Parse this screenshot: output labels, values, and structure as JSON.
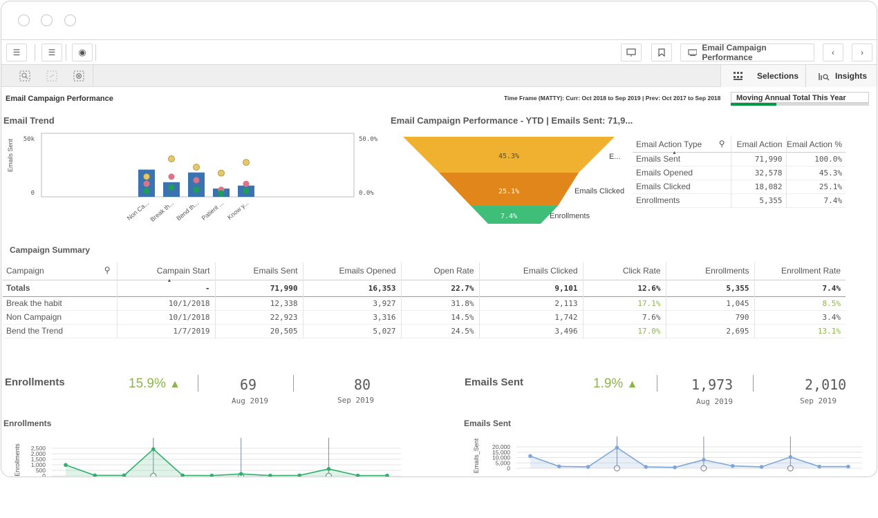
{
  "toolbar": {
    "sheet_title": "Email Campaign Performance"
  },
  "selbar": {
    "selections_label": "Selections",
    "insights_label": "Insights"
  },
  "page": {
    "title": "Email Campaign Performance",
    "timeframe": "Time Frame (MATTY): Curr: Oct 2018 to Sep 2019 | Prev: Oct 2017 to Sep 2018",
    "mat_button": "Moving Annual Total This Year",
    "mat_progress": 0.33
  },
  "trend": {
    "title": "Email Trend",
    "ylabel": "Emails Sent",
    "y_max_label": "50k",
    "y_min_label": "0",
    "y2_max_label": "50.0%",
    "y2_min_label": "0.0%",
    "categories": [
      "Non Ca...",
      "Break th...",
      "Bend th...",
      "Patient ...",
      "Know y..."
    ]
  },
  "funnel": {
    "title": "Email Campaign Performance - YTD | Emails Sent: 71,9...",
    "stages": [
      {
        "pct": "45.3%",
        "label": "E...",
        "color": "#f0b030"
      },
      {
        "pct": "25.1%",
        "label": "Emails Clicked",
        "color": "#e0861a"
      },
      {
        "pct": "7.4%",
        "label": "Enrollments",
        "color": "#3fbe7a"
      }
    ]
  },
  "action_table": {
    "headers": [
      "Email Action Type",
      "Email Action",
      "Email Action %"
    ],
    "rows": [
      [
        "Emails Sent",
        "71,990",
        "100.0%"
      ],
      [
        "Emails Opened",
        "32,578",
        "45.3%"
      ],
      [
        "Emails Clicked",
        "18,082",
        "25.1%"
      ],
      [
        "Enrollments",
        "5,355",
        "7.4%"
      ]
    ]
  },
  "summary": {
    "title": "Campaign Summary",
    "headers": [
      "Campaign",
      "Campain Start",
      "Emails Sent",
      "Emails Opened",
      "Open Rate",
      "Emails Clicked",
      "Click Rate",
      "Enrollments",
      "Enrollment Rate"
    ],
    "totals": [
      "Totals",
      "-",
      "71,990",
      "16,353",
      "22.7%",
      "9,101",
      "12.6%",
      "5,355",
      "7.4%"
    ],
    "rows": [
      [
        "Break the habit",
        "10/1/2018",
        "12,338",
        "3,927",
        "31.8%",
        "2,113",
        "17.1%",
        "1,045",
        "8.5%"
      ],
      [
        "Non Campaign",
        "10/1/2018",
        "22,923",
        "3,316",
        "14.5%",
        "1,742",
        "7.6%",
        "790",
        "3.4%"
      ],
      [
        "Bend the Trend",
        "1/7/2019",
        "20,505",
        "5,027",
        "24.5%",
        "3,496",
        "17.0%",
        "2,695",
        "13.1%"
      ]
    ],
    "green_color": "#8db54b"
  },
  "kpi_enroll": {
    "title": "Enrollments",
    "pct": "15.9%",
    "v1": "69",
    "d1": "Aug 2019",
    "v2": "80",
    "d2": "Sep 2019"
  },
  "kpi_sent": {
    "title": "Emails Sent",
    "pct": "1.9%",
    "v1": "1,973",
    "d1": "Aug 2019",
    "v2": "2,010",
    "d2": "Sep 2019"
  },
  "enroll_chart": {
    "title": "Enrollments",
    "ylabel": "Enrollments",
    "ticks": [
      "2,500",
      "2,000",
      "1,500",
      "1,000",
      "500",
      "0"
    ]
  },
  "sent_chart": {
    "title": "Emails Sent",
    "ylabel": "Emails_Sent",
    "ticks": [
      "20,000",
      "15,000",
      "10,000",
      "5,000",
      "0"
    ]
  },
  "chart_data": [
    {
      "type": "bar",
      "title": "Email Trend",
      "ylabel": "Emails Sent",
      "categories": [
        "Non Ca...",
        "Break th...",
        "Bend th...",
        "Patient ...",
        "Know y..."
      ],
      "ylim": [
        0,
        50000
      ],
      "y2lim": [
        0,
        50
      ],
      "series": [
        {
          "values": [
            22923,
            12338,
            20505,
            7000,
            9500
          ]
        },
        {
          "values": [
            17,
            32,
            25,
            20,
            29
          ]
        },
        {
          "values": [
            11,
            17,
            14,
            6,
            11
          ]
        },
        {
          "values": [
            5,
            8,
            6,
            3,
            5
          ]
        }
      ]
    },
    {
      "type": "area",
      "title": "Enrollments",
      "ylabel": "Enrollments",
      "ylim": [
        0,
        3000
      ],
      "values": [
        1100,
        50,
        50,
        2700,
        50,
        30,
        200,
        30,
        50,
        700,
        30,
        30
      ]
    },
    {
      "type": "area",
      "title": "Emails Sent",
      "ylabel": "Emails_Sent",
      "ylim": [
        0,
        25000
      ],
      "values": [
        13000,
        2000,
        1500,
        22000,
        1500,
        1000,
        9000,
        2500,
        1500,
        12000,
        1800,
        1800
      ]
    }
  ]
}
